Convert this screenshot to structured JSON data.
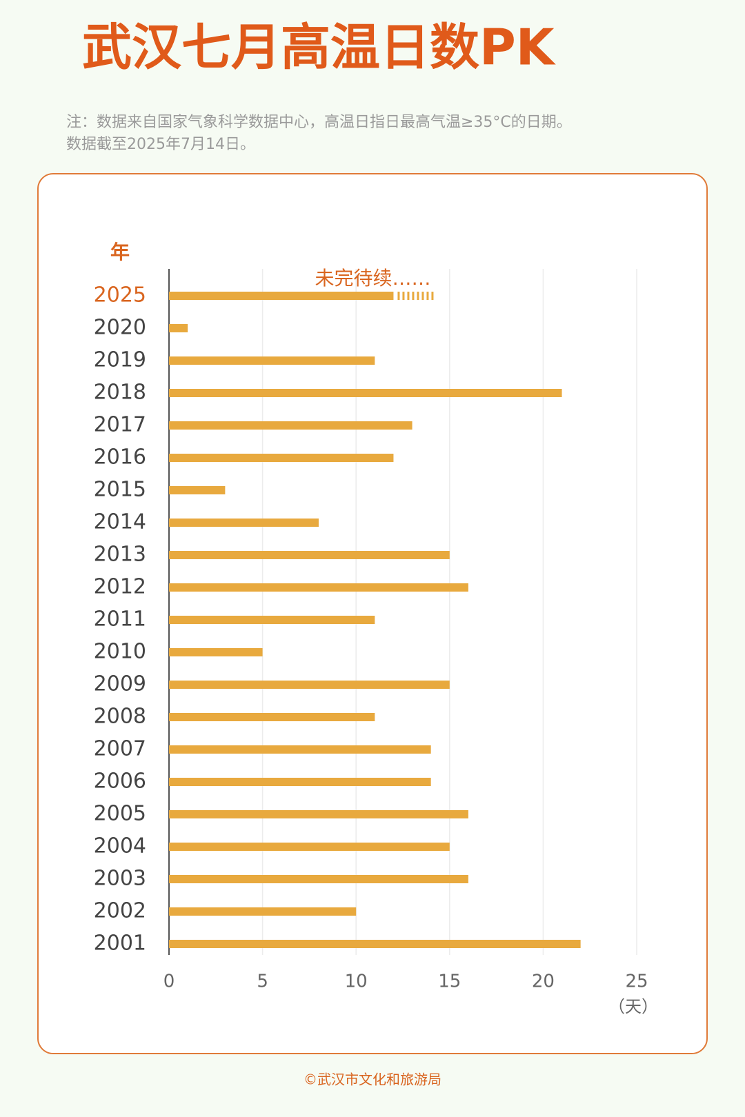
{
  "chart_data": {
    "type": "bar",
    "orientation": "horizontal",
    "title": "武汉七月高温日数PK",
    "note": [
      "注：数据来自国家气象科学数据中心，高温日指日最高气温≥35°C的日期。",
      "数据截至2025年7月14日。"
    ],
    "y_axis_label": "年",
    "x_axis_label": "（天）",
    "annotation": "未完待续……",
    "footer": "©武汉市文化和旅游局",
    "categories": [
      "2025",
      "2020",
      "2019",
      "2018",
      "2017",
      "2016",
      "2015",
      "2014",
      "2013",
      "2012",
      "2011",
      "2010",
      "2009",
      "2008",
      "2007",
      "2006",
      "2005",
      "2004",
      "2003",
      "2002",
      "2001"
    ],
    "values": [
      12,
      1,
      11,
      21,
      13,
      12,
      3,
      8,
      15,
      16,
      11,
      5,
      15,
      11,
      14,
      14,
      16,
      15,
      16,
      10,
      22
    ],
    "color": "#e8a93e",
    "category_label_colors": [
      "#d9651f",
      "#444444",
      "#444444",
      "#444444",
      "#444444",
      "#444444",
      "#444444",
      "#444444",
      "#444444",
      "#444444",
      "#444444",
      "#444444",
      "#444444",
      "#444444",
      "#444444",
      "#444444",
      "#444444",
      "#444444",
      "#444444",
      "#444444",
      "#444444"
    ],
    "xlim": [
      0,
      25
    ],
    "xticks": [
      0,
      5,
      10,
      15,
      20,
      25
    ],
    "grid": true
  }
}
